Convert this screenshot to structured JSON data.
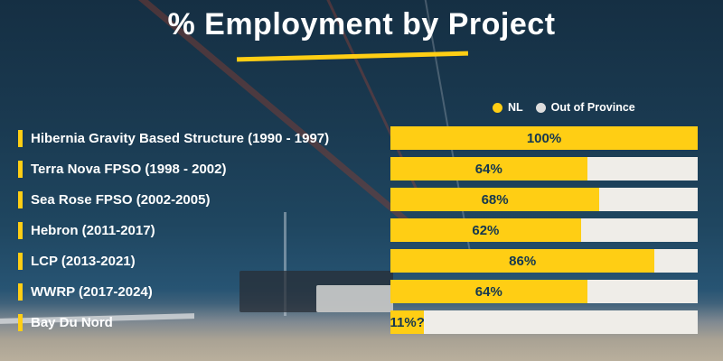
{
  "title": "% Employment by Project",
  "legend": {
    "items": [
      {
        "label": "NL",
        "color": "#FFCE14"
      },
      {
        "label": "Out of Province",
        "color": "#DDDDDD"
      }
    ]
  },
  "colors": {
    "background_navy": "#1C3E55",
    "bar_yellow": "#FFCE14",
    "bar_white": "#EFEDE8",
    "value_text_dark": "#14374F",
    "label_text_white": "#FFFFFF"
  },
  "chart_data": {
    "type": "bar",
    "orientation": "horizontal",
    "title": "% Employment by Project",
    "unit": "%",
    "xlim": [
      0,
      100
    ],
    "legend_position": "top-right",
    "categories": [
      "Hibernia Gravity Based Structure (1990 - 1997)",
      "Terra Nova FPSO (1998 - 2002)",
      "Sea Rose FPSO (2002-2005)",
      "Hebron (2011-2017)",
      "LCP (2013-2021)",
      "WWRP (2017-2024)",
      "Bay Du Nord"
    ],
    "series": [
      {
        "name": "NL",
        "color": "#FFCE14",
        "values": [
          100,
          64,
          68,
          62,
          86,
          64,
          11
        ]
      },
      {
        "name": "Out of Province",
        "color": "#EFEDE8",
        "values": [
          0,
          36,
          32,
          38,
          14,
          36,
          89
        ]
      }
    ],
    "value_labels": [
      "100%",
      "64%",
      "68%",
      "62%",
      "86%",
      "64%",
      "11%?"
    ]
  }
}
